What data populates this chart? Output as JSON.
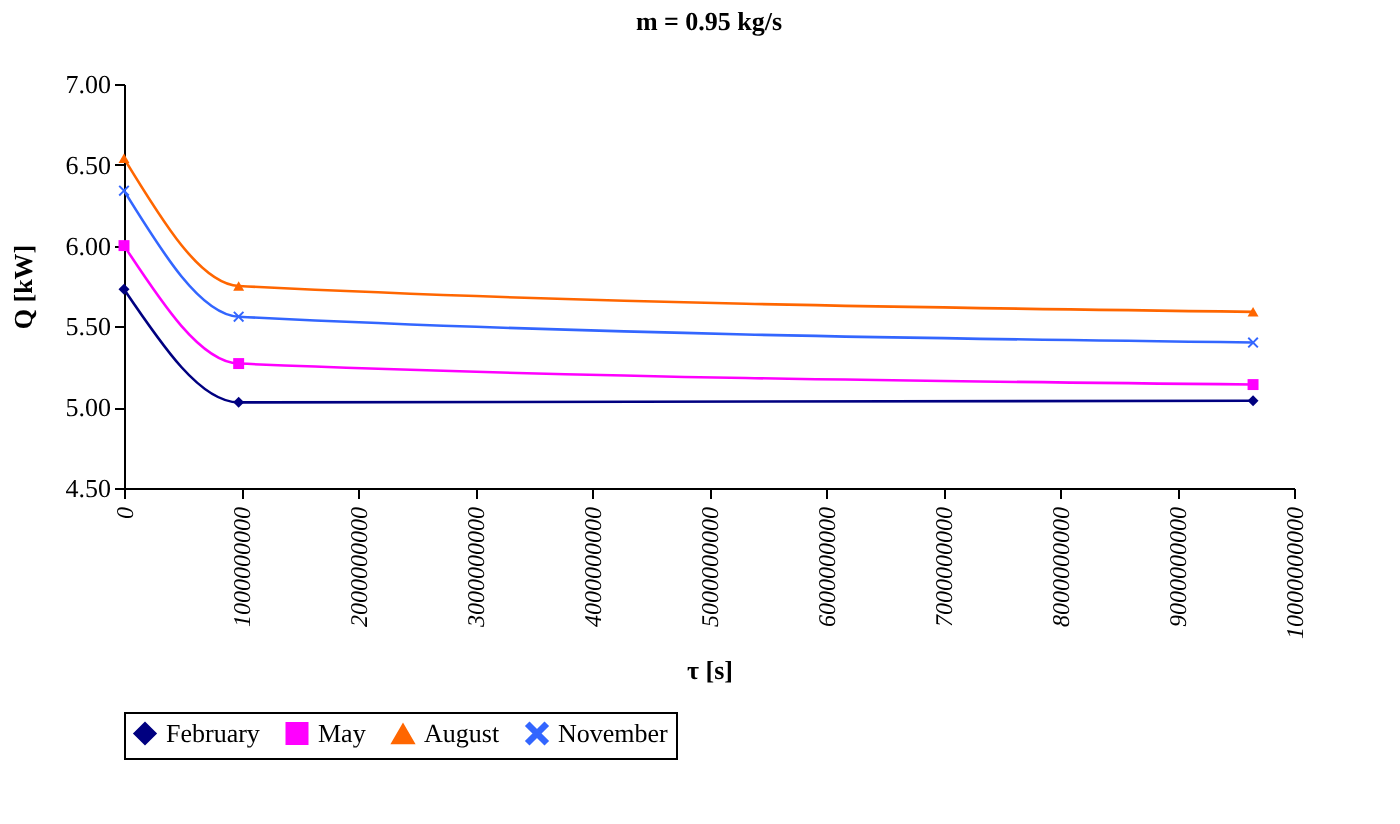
{
  "chart_data": {
    "type": "line",
    "title": "m = 0.95 kg/s",
    "xlabel": "τ [s]",
    "ylabel": "Q [kW]",
    "x": [
      0,
      980000000,
      9650000000
    ],
    "series": [
      {
        "name": "February",
        "color": "#000080",
        "marker": "diamond",
        "values": [
          5.73,
          5.03,
          5.04
        ]
      },
      {
        "name": "May",
        "color": "#ff00ff",
        "marker": "square",
        "values": [
          6.0,
          5.27,
          5.14
        ]
      },
      {
        "name": "August",
        "color": "#ff6600",
        "marker": "triangle",
        "values": [
          6.54,
          5.75,
          5.59
        ]
      },
      {
        "name": "November",
        "color": "#3366ff",
        "marker": "cross",
        "values": [
          6.34,
          5.56,
          5.4
        ]
      }
    ],
    "xlim": [
      0,
      10000000000
    ],
    "xticks": [
      0,
      1000000000,
      2000000000,
      3000000000,
      4000000000,
      5000000000,
      6000000000,
      7000000000,
      8000000000,
      9000000000,
      10000000000
    ],
    "ylim": [
      4.5,
      7.0
    ],
    "yticks": [
      {
        "value": 4.5,
        "label": "4.50"
      },
      {
        "value": 5.0,
        "label": "5.00"
      },
      {
        "value": 5.5,
        "label": "5.50"
      },
      {
        "value": 6.0,
        "label": "6.00"
      },
      {
        "value": 6.5,
        "label": "6.50"
      },
      {
        "value": 7.0,
        "label": "7.00"
      }
    ],
    "grid": false,
    "legend": "bottom",
    "line_style": "solid"
  }
}
